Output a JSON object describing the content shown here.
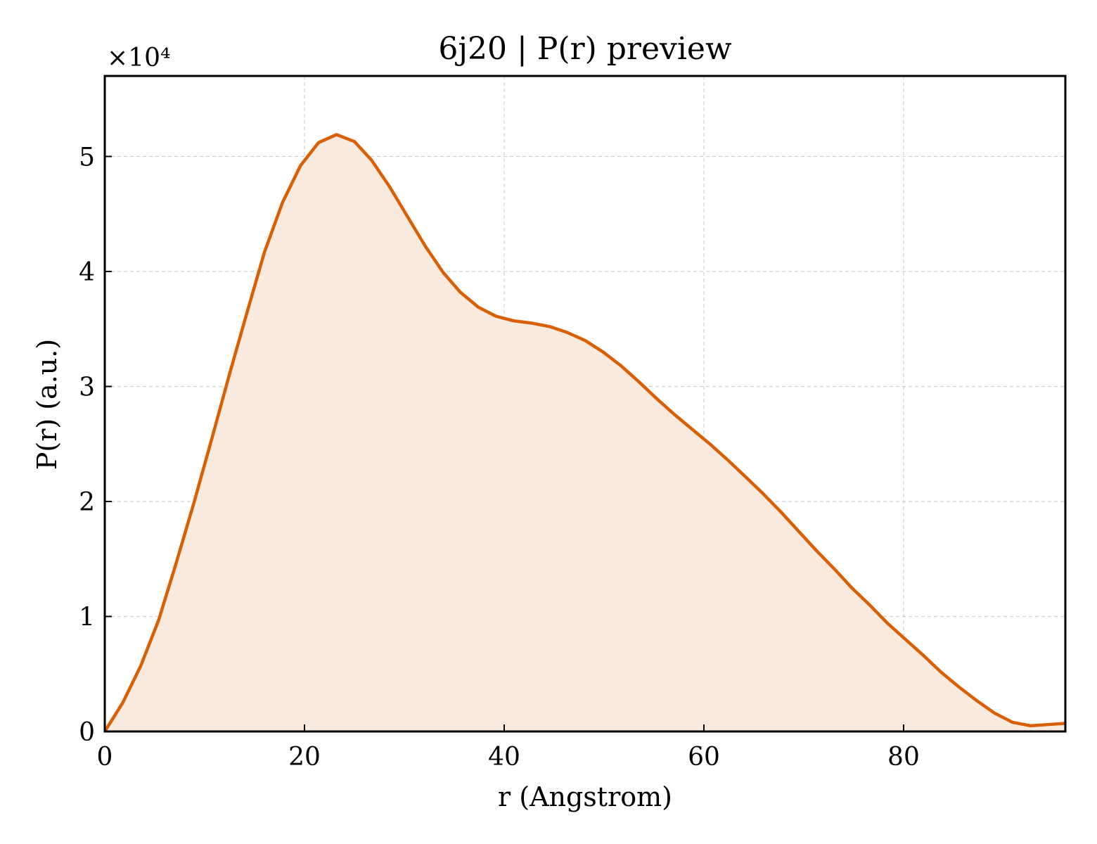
{
  "chart_data": {
    "type": "area",
    "title": "6j20 | P(r) preview",
    "xlabel": "r (Angstrom)",
    "ylabel": "P(r) (a.u.)",
    "y_scale_label": "×10⁴",
    "xlim": [
      0,
      96.2
    ],
    "ylim": [
      0,
      5.7
    ],
    "xticks": [
      0,
      20,
      40,
      60,
      80
    ],
    "xtick_labels": [
      "0",
      "20",
      "40",
      "60",
      "80"
    ],
    "yticks": [
      0,
      1,
      2,
      3,
      4,
      5
    ],
    "ytick_labels": [
      "0",
      "1",
      "2",
      "3",
      "4",
      "5"
    ],
    "grid": true,
    "line_color": "#d95f02",
    "fill_color": "#f9eadf",
    "series": [
      {
        "x": [
          0,
          1.8,
          3.6,
          5.4,
          7.1,
          8.9,
          10.7,
          12.5,
          14.3,
          16.0,
          17.8,
          19.6,
          21.4,
          23.2,
          25.0,
          26.7,
          28.5,
          30.3,
          32.1,
          33.9,
          35.6,
          37.4,
          39.2,
          41.0,
          42.8,
          44.6,
          46.3,
          48.1,
          49.9,
          51.7,
          53.5,
          55.2,
          57.0,
          58.8,
          60.6,
          62.4,
          64.1,
          65.9,
          67.7,
          69.5,
          71.3,
          73.1,
          74.8,
          76.6,
          78.4,
          80.2,
          82.0,
          83.7,
          85.5,
          87.3,
          89.1,
          90.9,
          92.7,
          94.4,
          96.2
        ],
        "y": [
          0.0,
          0.25,
          0.57,
          0.97,
          1.45,
          1.98,
          2.54,
          3.11,
          3.66,
          4.17,
          4.6,
          4.92,
          5.12,
          5.19,
          5.13,
          4.97,
          4.74,
          4.48,
          4.22,
          3.99,
          3.82,
          3.69,
          3.61,
          3.57,
          3.55,
          3.52,
          3.47,
          3.4,
          3.3,
          3.18,
          3.04,
          2.9,
          2.76,
          2.63,
          2.5,
          2.36,
          2.22,
          2.07,
          1.91,
          1.74,
          1.57,
          1.41,
          1.25,
          1.1,
          0.94,
          0.8,
          0.66,
          0.52,
          0.39,
          0.27,
          0.16,
          0.08,
          0.05,
          0.06,
          0.07
        ]
      }
    ]
  }
}
